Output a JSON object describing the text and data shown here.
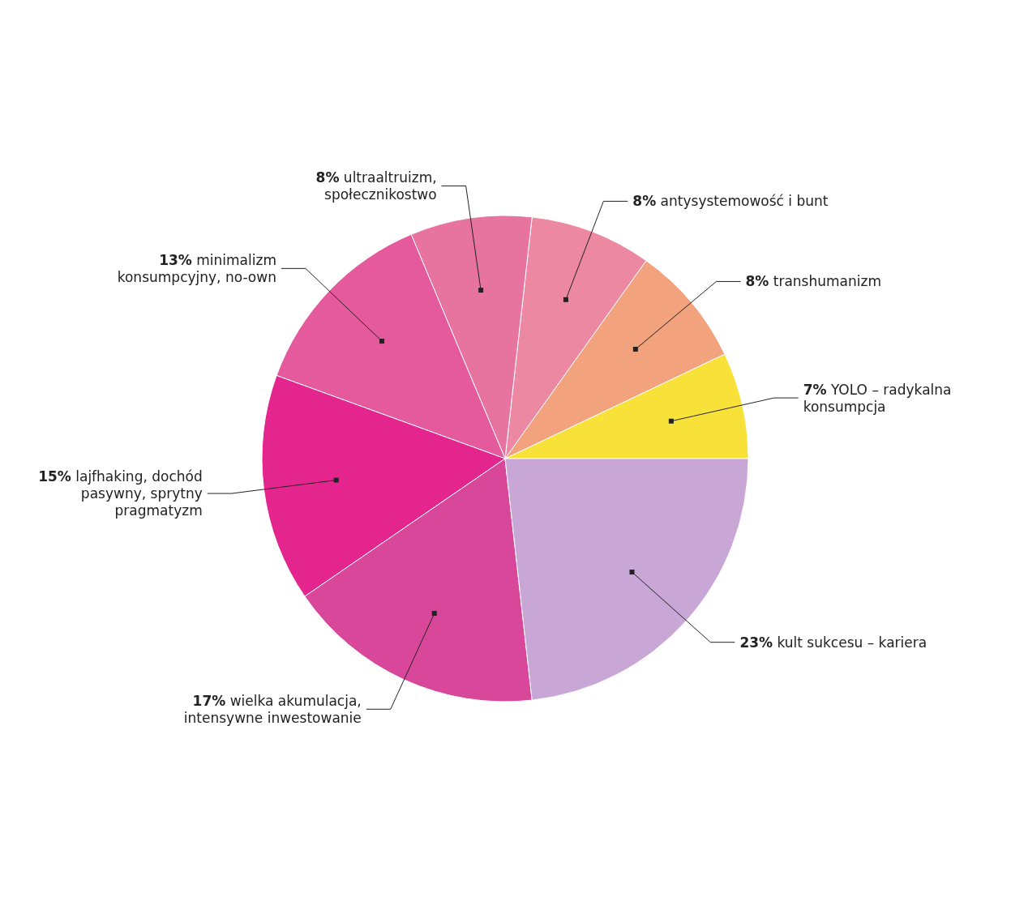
{
  "chart_data": {
    "type": "pie",
    "categories": [
      "YOLO – radykalna konsumpcja",
      "transhumanizm",
      "antysystemowość i bunt",
      "ultraaltruizm, społecznikostwo",
      "minimalizm konsumpcyjny, no-own",
      "lajfhaking, dochód pasywny, sprytny pragmatyzm",
      "wielka akumulacja, intensywne inwestowanie",
      "kult sukcesu – kariera"
    ],
    "values": [
      7,
      8,
      8,
      8,
      13,
      15,
      17,
      23
    ],
    "value_labels": [
      "7%",
      "8%",
      "8%",
      "8%",
      "13%",
      "15%",
      "17%",
      "23%"
    ],
    "colors": [
      "#f8e23a",
      "#f2a27c",
      "#ec88a2",
      "#e7739f",
      "#e55a9c",
      "#e4258e",
      "#d9479b",
      "#c8a6d6"
    ]
  }
}
